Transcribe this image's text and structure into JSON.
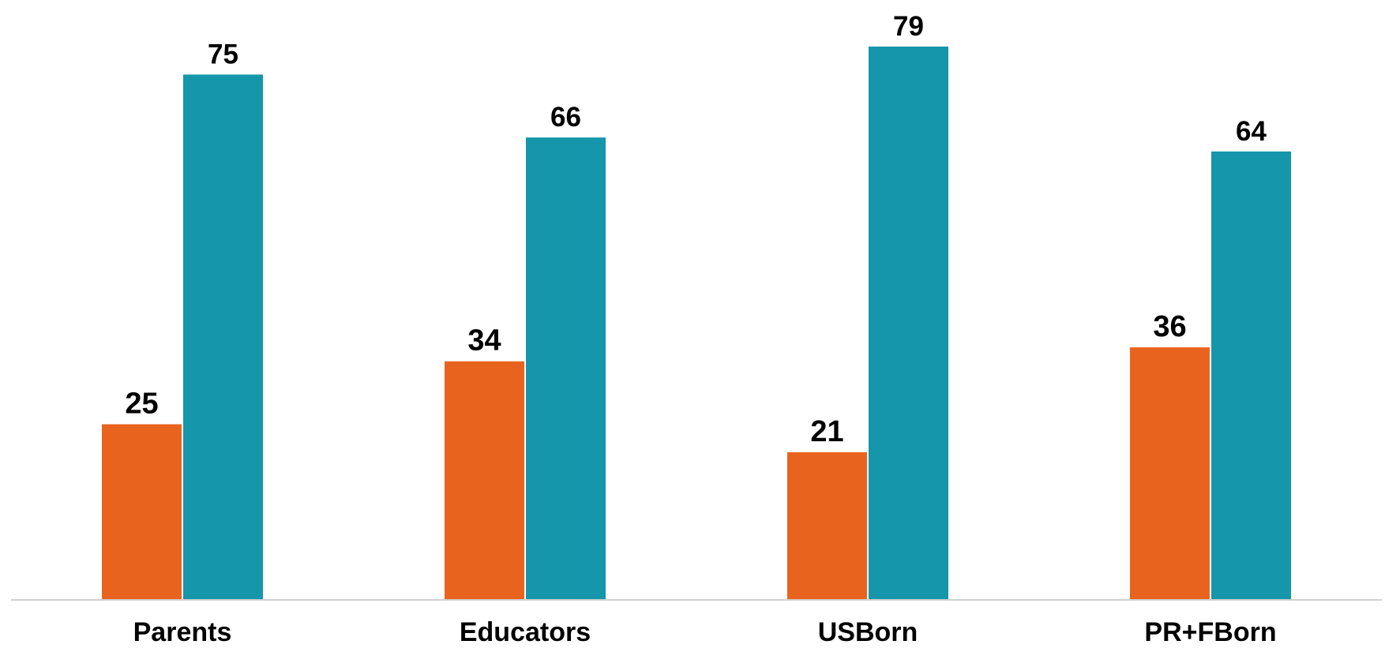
{
  "chart_data": {
    "type": "bar",
    "title": "",
    "xlabel": "",
    "ylabel": "",
    "categories": [
      "Parents",
      "Educators",
      "USBorn",
      "PR+FBorn"
    ],
    "series": [
      {
        "values": [
          25,
          34,
          21,
          36
        ],
        "color": "#E8641E"
      },
      {
        "values": [
          75,
          66,
          79,
          64
        ],
        "color": "#1596AB"
      }
    ],
    "ylim": [
      0,
      79
    ],
    "grid": false,
    "legend": "none",
    "baseline_color": "#D0D0D0"
  }
}
